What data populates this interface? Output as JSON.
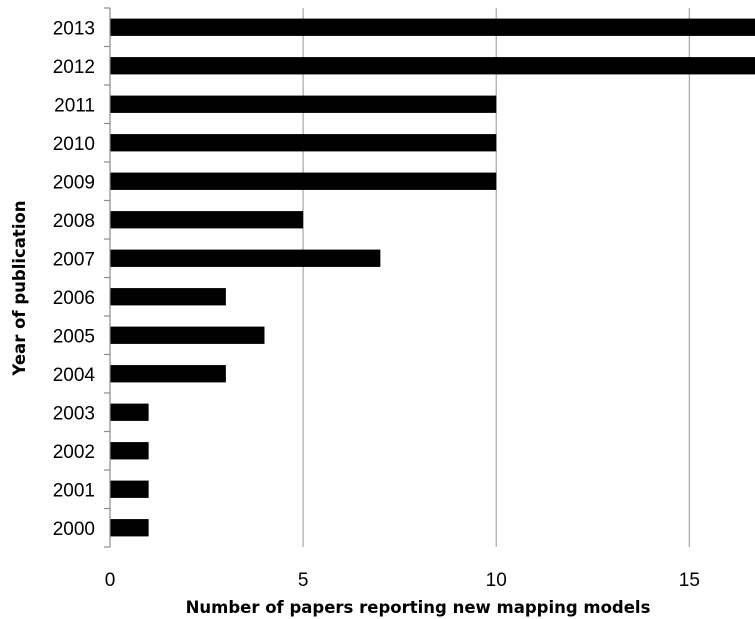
{
  "chart_data": {
    "type": "bar",
    "orientation": "horizontal",
    "categories": [
      "2013",
      "2012",
      "2011",
      "2010",
      "2009",
      "2008",
      "2007",
      "2006",
      "2005",
      "2004",
      "2003",
      "2002",
      "2001",
      "2000"
    ],
    "values": [
      17,
      17,
      10,
      10,
      10,
      5,
      7,
      3,
      4,
      3,
      1,
      1,
      1,
      1
    ],
    "xlabel": "Number of papers reporting new mapping models",
    "ylabel": "Year of publication",
    "xlim": [
      0,
      16.7
    ],
    "x_ticks": [
      "0",
      "5",
      "10",
      "15"
    ],
    "grid": "vertical",
    "bar_color": "#000000",
    "grid_color": "#a6a6a6"
  }
}
